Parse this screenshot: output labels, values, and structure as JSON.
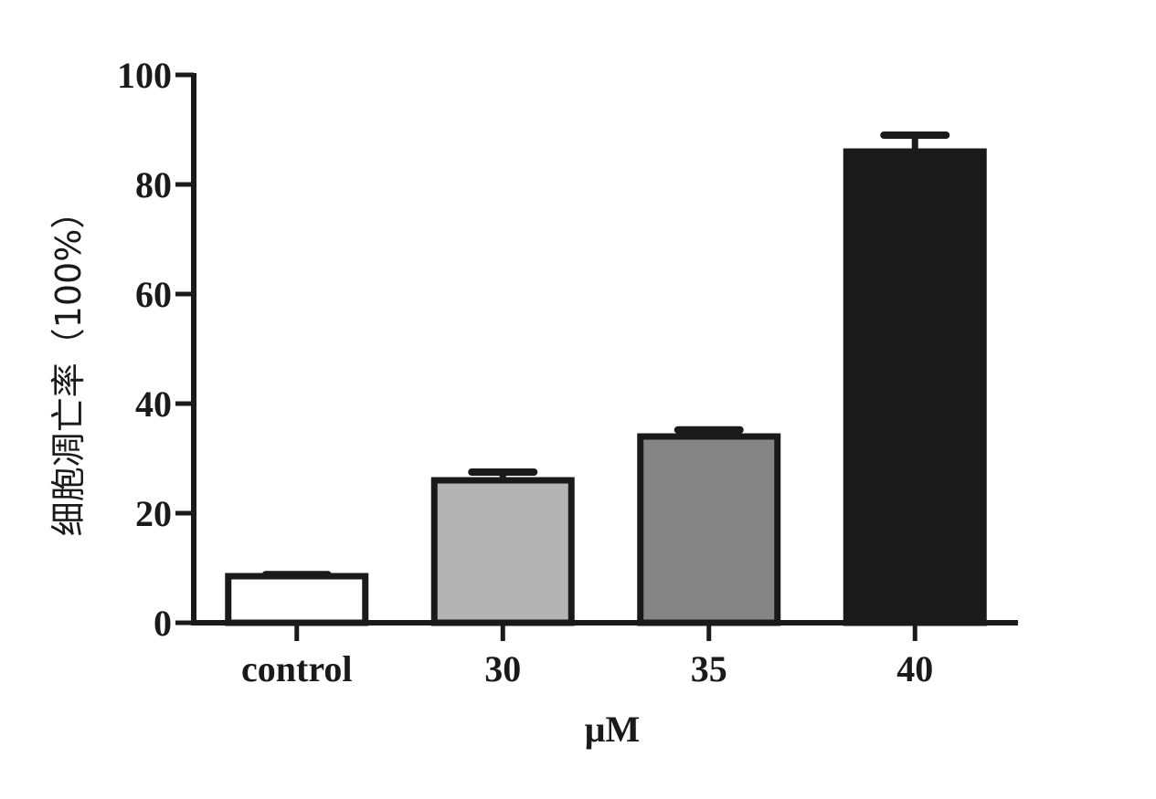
{
  "chart_data": {
    "type": "bar",
    "categories": [
      "control",
      "30",
      "35",
      "40"
    ],
    "values": [
      8.5,
      26,
      34,
      86
    ],
    "errors": [
      0.3,
      1.5,
      1.2,
      3.0
    ],
    "fills": [
      "#ffffff",
      "#b3b3b3",
      "#858585",
      "#1a1a1a"
    ],
    "xlabel": "μM",
    "ylabel": "细胞凋亡率（100%）",
    "ylim": [
      0,
      100
    ],
    "yticks": [
      0,
      20,
      40,
      60,
      80,
      100
    ],
    "grid": false,
    "stroke_color": "#1a1a1a"
  }
}
